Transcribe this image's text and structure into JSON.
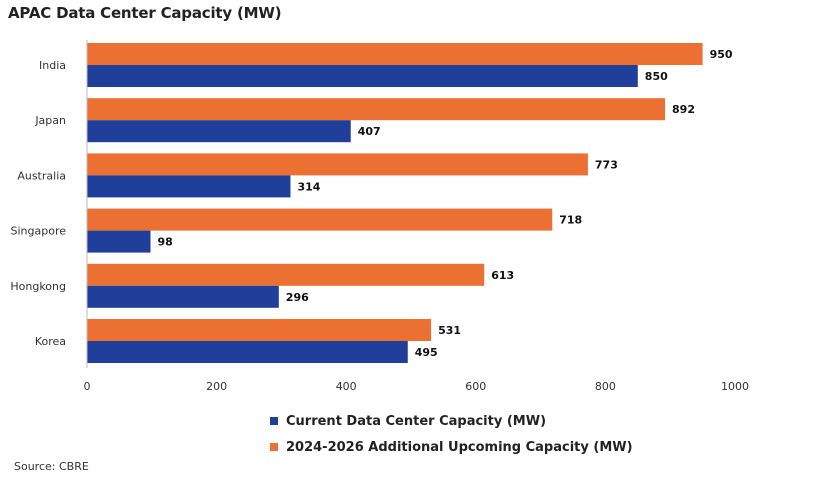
{
  "title": "APAC Data Center Capacity (MW)",
  "source": "Source: CBRE",
  "chart_data": {
    "type": "bar",
    "orientation": "horizontal",
    "categories": [
      "India",
      "Japan",
      "Australia",
      "Singapore",
      "Hongkong",
      "Korea"
    ],
    "series": [
      {
        "name": "2024-2026 Additional Upcoming Capacity (MW)",
        "color": "#EC7032",
        "values": [
          950,
          892,
          773,
          718,
          613,
          531
        ]
      },
      {
        "name": "Current Data Center Capacity (MW)",
        "color": "#203F9A",
        "values": [
          850,
          407,
          314,
          98,
          296,
          495
        ]
      }
    ],
    "xlim": [
      0,
      1000
    ],
    "xticks": [
      0,
      200,
      400,
      600,
      800,
      1000
    ],
    "title": "APAC Data Center Capacity (MW)",
    "xlabel": "",
    "ylabel": "",
    "grid": false,
    "legend": "bottom"
  },
  "legend": [
    {
      "label": "Current Data Center Capacity (MW)",
      "color": "#203F9A"
    },
    {
      "label": "2024-2026 Additional Upcoming Capacity (MW)",
      "color": "#EC7032"
    }
  ]
}
